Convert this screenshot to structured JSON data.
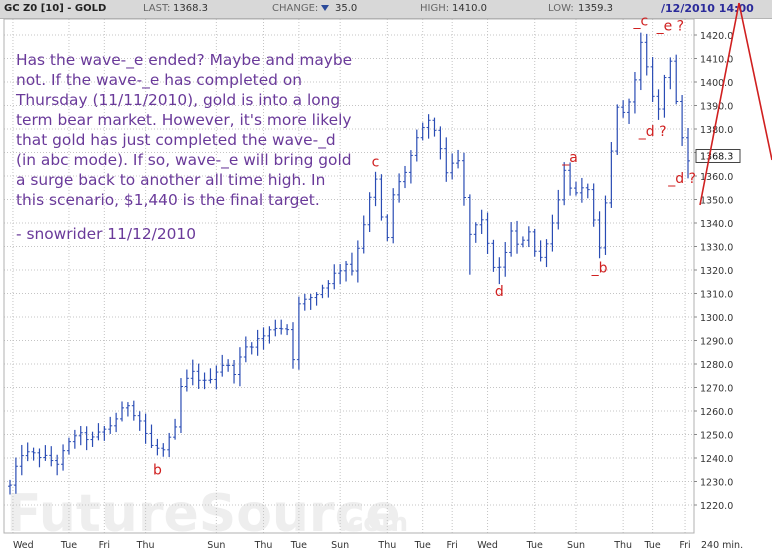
{
  "header": {
    "symbol": "GC Z0 [10] - GOLD",
    "last_label": "LAST:",
    "last": "1368.3",
    "change_label": "CHANGE:",
    "change": "35.0",
    "change_direction": "down",
    "high_label": "HIGH:",
    "high": "1410.0",
    "low_label": "LOW:",
    "low": "1359.3",
    "datetime": "/12/2010 14:00"
  },
  "commentary": {
    "text": "Has the wave-_e ended?  Maybe and maybe not.  If the wave-_e has completed on Thursday (11/11/2010), gold is into a long term bear market.  However, it's more likely that gold has just completed the wave-_d (in abc mode).  If so, wave-_e will bring gold a surge back to another all time high.  In this scenario, $1,440 is the final target.",
    "signature": "- snowrider  11/12/2010"
  },
  "watermark": "FutureSource.com",
  "price_tag": "1368.3",
  "colors": {
    "bars": "#2a4cb4",
    "annotation": "#d02020",
    "text": "#6a3a9a",
    "header_bg": "#d8d8d8",
    "grid": "#c4c4c4"
  },
  "chart_data": {
    "type": "bar",
    "subtype": "high-low bars (240 min)",
    "title": "GC Z0 [10] - GOLD",
    "xlabel": "240 min.",
    "ylabel": "",
    "ylim": [
      1212,
      1424
    ],
    "y_ticks": [
      1220,
      1230,
      1240,
      1250,
      1260,
      1270,
      1280,
      1290,
      1300,
      1310,
      1320,
      1330,
      1340,
      1350,
      1360,
      1370,
      1380,
      1390,
      1400,
      1410,
      1420
    ],
    "y_tick_labels": [
      "1220.0",
      "1230.0",
      "1240.0",
      "1250.0",
      "1260.0",
      "1270.0",
      "1280.0",
      "1290.0",
      "1300.0",
      "1310.0",
      "1320.0",
      "1330.0",
      "1340.0",
      "1350.0",
      "1360.0",
      "1370.0",
      "1380.0",
      "1390.0",
      "1400.0",
      "1410.0",
      "1420.0"
    ],
    "x_labels": [
      "Wed",
      "Tue",
      "Fri",
      "Thu",
      "Sun",
      "Thu",
      "Tue",
      "Sun",
      "Thu",
      "Tue",
      "Fri",
      "Wed",
      "Tue",
      "Sun",
      "Thu",
      "Tue",
      "Fri"
    ],
    "x_positions": [
      0.5,
      10,
      16,
      23,
      35,
      43,
      49,
      56,
      64,
      70,
      75,
      81,
      89,
      96,
      104,
      109,
      114.5
    ],
    "grid": true,
    "last_value": 1368.3,
    "anchors": [
      {
        "x": 0,
        "y": 1228
      },
      {
        "x": 2,
        "y": 1242
      },
      {
        "x": 5,
        "y": 1241
      },
      {
        "x": 8,
        "y": 1238
      },
      {
        "x": 11,
        "y": 1250
      },
      {
        "x": 14,
        "y": 1248
      },
      {
        "x": 17,
        "y": 1254
      },
      {
        "x": 20,
        "y": 1263
      },
      {
        "x": 22,
        "y": 1256
      },
      {
        "x": 24,
        "y": 1245
      },
      {
        "x": 26,
        "y": 1243
      },
      {
        "x": 28,
        "y": 1252
      },
      {
        "x": 29,
        "y": 1270
      },
      {
        "x": 31,
        "y": 1276
      },
      {
        "x": 33,
        "y": 1272
      },
      {
        "x": 36,
        "y": 1280
      },
      {
        "x": 38,
        "y": 1277
      },
      {
        "x": 40,
        "y": 1287
      },
      {
        "x": 43,
        "y": 1292
      },
      {
        "x": 45,
        "y": 1296
      },
      {
        "x": 47,
        "y": 1295
      },
      {
        "x": 48,
        "y": 1283
      },
      {
        "x": 49,
        "y": 1305
      },
      {
        "x": 52,
        "y": 1310
      },
      {
        "x": 55,
        "y": 1318
      },
      {
        "x": 57,
        "y": 1323
      },
      {
        "x": 58,
        "y": 1320
      },
      {
        "x": 60,
        "y": 1340
      },
      {
        "x": 61,
        "y": 1350
      },
      {
        "x": 62,
        "y": 1358
      },
      {
        "x": 63,
        "y": 1342
      },
      {
        "x": 64,
        "y": 1333
      },
      {
        "x": 65,
        "y": 1352
      },
      {
        "x": 67,
        "y": 1362
      },
      {
        "x": 69,
        "y": 1375
      },
      {
        "x": 71,
        "y": 1384
      },
      {
        "x": 73,
        "y": 1372
      },
      {
        "x": 74,
        "y": 1362
      },
      {
        "x": 76,
        "y": 1366
      },
      {
        "x": 77,
        "y": 1350
      },
      {
        "x": 78,
        "y": 1335
      },
      {
        "x": 80,
        "y": 1342
      },
      {
        "x": 81,
        "y": 1330
      },
      {
        "x": 82,
        "y": 1322
      },
      {
        "x": 83,
        "y": 1320
      },
      {
        "x": 85,
        "y": 1336
      },
      {
        "x": 86,
        "y": 1330
      },
      {
        "x": 88,
        "y": 1337
      },
      {
        "x": 89,
        "y": 1328
      },
      {
        "x": 90,
        "y": 1325
      },
      {
        "x": 92,
        "y": 1340
      },
      {
        "x": 94,
        "y": 1362
      },
      {
        "x": 95,
        "y": 1356
      },
      {
        "x": 96,
        "y": 1352
      },
      {
        "x": 98,
        "y": 1355
      },
      {
        "x": 99,
        "y": 1340
      },
      {
        "x": 100,
        "y": 1328
      },
      {
        "x": 101,
        "y": 1348
      },
      {
        "x": 102,
        "y": 1370
      },
      {
        "x": 103,
        "y": 1390
      },
      {
        "x": 104,
        "y": 1386
      },
      {
        "x": 106,
        "y": 1400
      },
      {
        "x": 107,
        "y": 1416
      },
      {
        "x": 108,
        "y": 1405
      },
      {
        "x": 109,
        "y": 1395
      },
      {
        "x": 110,
        "y": 1388
      },
      {
        "x": 111,
        "y": 1402
      },
      {
        "x": 112,
        "y": 1410
      },
      {
        "x": 113,
        "y": 1392
      },
      {
        "x": 114,
        "y": 1375
      },
      {
        "x": 115,
        "y": 1365
      },
      {
        "x": 115.5,
        "y": 1368
      }
    ],
    "annotations": [
      {
        "label": "b",
        "x": 25,
        "y": 1233
      },
      {
        "label": "c",
        "x": 62,
        "y": 1364
      },
      {
        "label": "d",
        "x": 83,
        "y": 1309
      },
      {
        "label": "_a",
        "x": 95,
        "y": 1366
      },
      {
        "label": "_b",
        "x": 100,
        "y": 1319
      },
      {
        "label": "_c",
        "x": 107,
        "y": 1424
      },
      {
        "label": "_e ?",
        "x": 112,
        "y": 1422
      },
      {
        "label": "_d ?",
        "x": 109,
        "y": 1377
      },
      {
        "label": "_d ?",
        "x": 114,
        "y": 1357
      }
    ]
  }
}
